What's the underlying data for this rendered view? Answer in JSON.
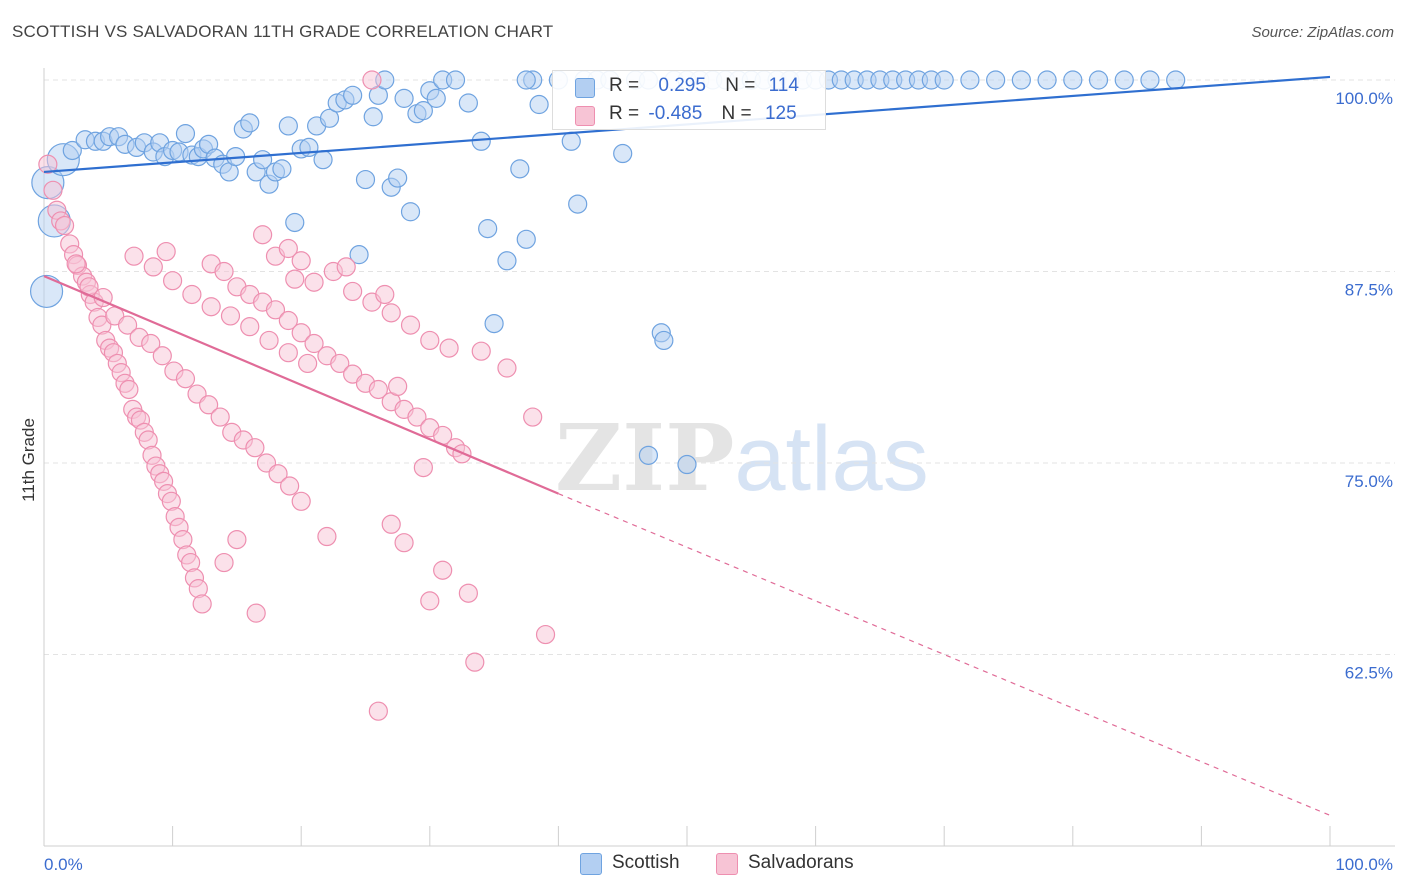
{
  "title": "SCOTTISH VS SALVADORAN 11TH GRADE CORRELATION CHART",
  "source": "Source: ZipAtlas.com",
  "watermark": "ZIPatlas",
  "colors": {
    "blue": "#6fa3e0",
    "blue_fill": "#b3cff2",
    "blue_line": "#2f6fd0",
    "pink": "#ee8fb0",
    "pink_fill": "#f7c4d5",
    "pink_line": "#e06b97",
    "tick_label": "#3b6ccf",
    "grid": "#e3e3e3"
  },
  "legend": {
    "rows": [
      {
        "r_label": "R =",
        "r_value": "0.295",
        "n_label": "N =",
        "n_value": "114"
      },
      {
        "r_label": "R =",
        "r_value": "-0.485",
        "n_label": "N =",
        "n_value": "125"
      }
    ]
  },
  "bottom_legend": [
    "Scottish",
    "Salvadorans"
  ],
  "chart_data": {
    "type": "scatter",
    "title": "SCOTTISH VS SALVADORAN 11TH GRADE CORRELATION CHART",
    "xlabel": "",
    "ylabel": "11th Grade",
    "xlim": [
      0,
      100
    ],
    "ylim": [
      50,
      100
    ],
    "x_tick_labels": [
      "0.0%",
      "100.0%"
    ],
    "y_tick_labels": [
      "100.0%",
      "87.5%",
      "75.0%",
      "62.5%"
    ],
    "y_ticks": [
      100,
      87.5,
      75,
      62.5
    ],
    "grid": true,
    "series": [
      {
        "name": "Scottish",
        "r": 0.295,
        "n": 114,
        "trend": {
          "x0": 0,
          "y0": 94.0,
          "x1": 100,
          "y1": 100.2
        },
        "points": [
          [
            0.3,
            93.3
          ],
          [
            0.8,
            90.8
          ],
          [
            1.5,
            94.8
          ],
          [
            0.2,
            86.2
          ],
          [
            2.2,
            95.4
          ],
          [
            3.2,
            96.1
          ],
          [
            4.0,
            96.0
          ],
          [
            4.6,
            96.0
          ],
          [
            5.1,
            96.3
          ],
          [
            5.8,
            96.3
          ],
          [
            6.3,
            95.8
          ],
          [
            7.2,
            95.6
          ],
          [
            7.8,
            95.9
          ],
          [
            8.5,
            95.3
          ],
          [
            9.0,
            95.9
          ],
          [
            9.4,
            95.0
          ],
          [
            10.0,
            95.4
          ],
          [
            10.5,
            95.3
          ],
          [
            11.0,
            96.5
          ],
          [
            11.5,
            95.1
          ],
          [
            12.0,
            95.0
          ],
          [
            12.4,
            95.5
          ],
          [
            12.8,
            95.8
          ],
          [
            13.3,
            94.9
          ],
          [
            13.9,
            94.5
          ],
          [
            14.4,
            94.0
          ],
          [
            14.9,
            95.0
          ],
          [
            15.5,
            96.8
          ],
          [
            16.0,
            97.2
          ],
          [
            16.5,
            94.0
          ],
          [
            17.0,
            94.8
          ],
          [
            17.5,
            93.2
          ],
          [
            18.0,
            94.0
          ],
          [
            18.5,
            94.2
          ],
          [
            19.0,
            97.0
          ],
          [
            19.5,
            90.7
          ],
          [
            20.0,
            95.5
          ],
          [
            20.6,
            95.6
          ],
          [
            21.2,
            97.0
          ],
          [
            21.7,
            94.8
          ],
          [
            22.2,
            97.5
          ],
          [
            22.8,
            98.5
          ],
          [
            23.4,
            98.7
          ],
          [
            24.0,
            99.0
          ],
          [
            24.5,
            88.6
          ],
          [
            25.0,
            93.5
          ],
          [
            25.6,
            97.6
          ],
          [
            26.0,
            99.0
          ],
          [
            26.5,
            100.0
          ],
          [
            27.0,
            93.0
          ],
          [
            27.5,
            93.6
          ],
          [
            28.0,
            98.8
          ],
          [
            28.5,
            91.4
          ],
          [
            29.0,
            97.8
          ],
          [
            29.5,
            98.0
          ],
          [
            30.0,
            99.3
          ],
          [
            30.5,
            98.8
          ],
          [
            31.0,
            100.0
          ],
          [
            32.0,
            100.0
          ],
          [
            33.0,
            98.5
          ],
          [
            34.0,
            96.0
          ],
          [
            34.5,
            90.3
          ],
          [
            35.0,
            84.1
          ],
          [
            36.0,
            88.2
          ],
          [
            37.0,
            94.2
          ],
          [
            37.5,
            89.6
          ],
          [
            38.0,
            100.0
          ],
          [
            38.5,
            98.4
          ],
          [
            40.0,
            100.0
          ],
          [
            41.0,
            96.0
          ],
          [
            41.5,
            91.9
          ],
          [
            42.0,
            100.0
          ],
          [
            43.0,
            100.0
          ],
          [
            44.0,
            100.0
          ],
          [
            45.0,
            95.2
          ],
          [
            46.0,
            100.0
          ],
          [
            47.0,
            100.0
          ],
          [
            48.0,
            83.5
          ],
          [
            48.2,
            83.0
          ],
          [
            49.0,
            100.0
          ],
          [
            50.0,
            100.0
          ],
          [
            51.0,
            100.0
          ],
          [
            52.0,
            100.0
          ],
          [
            53.0,
            100.0
          ],
          [
            54.0,
            100.0
          ],
          [
            55.0,
            100.0
          ],
          [
            56.0,
            100.0
          ],
          [
            57.0,
            100.0
          ],
          [
            58.0,
            100.0
          ],
          [
            59.0,
            100.0
          ],
          [
            60.0,
            100.0
          ],
          [
            61.0,
            100.0
          ],
          [
            62.0,
            100.0
          ],
          [
            63.0,
            100.0
          ],
          [
            64.0,
            100.0
          ],
          [
            65.0,
            100.0
          ],
          [
            66.0,
            100.0
          ],
          [
            67.0,
            100.0
          ],
          [
            68.0,
            100.0
          ],
          [
            69.0,
            100.0
          ],
          [
            70.0,
            100.0
          ],
          [
            72.0,
            100.0
          ],
          [
            74.0,
            100.0
          ],
          [
            76.0,
            100.0
          ],
          [
            78.0,
            100.0
          ],
          [
            80.0,
            100.0
          ],
          [
            82.0,
            100.0
          ],
          [
            84.0,
            100.0
          ],
          [
            86.0,
            100.0
          ],
          [
            88.0,
            100.0
          ],
          [
            47.0,
            75.5
          ],
          [
            50.0,
            74.9
          ],
          [
            37.5,
            100.0
          ],
          [
            58.0,
            100.0
          ]
        ]
      },
      {
        "name": "Salvadorans",
        "r": -0.485,
        "n": 125,
        "trend": {
          "x0": 0,
          "y0": 87.2,
          "x1": 40,
          "y1": 73.0,
          "dash_x1": 100,
          "dash_y1": 52.0
        },
        "points": [
          [
            0.3,
            94.5
          ],
          [
            0.7,
            92.8
          ],
          [
            1.0,
            91.5
          ],
          [
            1.3,
            90.8
          ],
          [
            1.6,
            90.5
          ],
          [
            2.0,
            89.3
          ],
          [
            2.3,
            88.6
          ],
          [
            2.6,
            87.9
          ],
          [
            3.0,
            87.2
          ],
          [
            3.3,
            86.8
          ],
          [
            3.6,
            86.0
          ],
          [
            3.9,
            85.5
          ],
          [
            4.2,
            84.5
          ],
          [
            4.5,
            84.0
          ],
          [
            4.8,
            83.0
          ],
          [
            5.1,
            82.5
          ],
          [
            5.4,
            82.2
          ],
          [
            5.7,
            81.5
          ],
          [
            6.0,
            80.9
          ],
          [
            6.3,
            80.2
          ],
          [
            6.6,
            79.8
          ],
          [
            6.9,
            78.5
          ],
          [
            7.2,
            78.0
          ],
          [
            7.5,
            77.8
          ],
          [
            7.8,
            77.0
          ],
          [
            8.1,
            76.5
          ],
          [
            8.4,
            75.5
          ],
          [
            8.7,
            74.8
          ],
          [
            9.0,
            74.3
          ],
          [
            9.3,
            73.8
          ],
          [
            9.6,
            73.0
          ],
          [
            9.9,
            72.5
          ],
          [
            10.2,
            71.5
          ],
          [
            10.5,
            70.8
          ],
          [
            10.8,
            70.0
          ],
          [
            11.1,
            69.0
          ],
          [
            11.4,
            68.5
          ],
          [
            11.7,
            67.5
          ],
          [
            12.0,
            66.8
          ],
          [
            12.3,
            65.8
          ],
          [
            2.5,
            88.0
          ],
          [
            3.5,
            86.5
          ],
          [
            4.6,
            85.8
          ],
          [
            5.5,
            84.6
          ],
          [
            6.5,
            84.0
          ],
          [
            7.4,
            83.2
          ],
          [
            8.3,
            82.8
          ],
          [
            9.2,
            82.0
          ],
          [
            10.1,
            81.0
          ],
          [
            11.0,
            80.5
          ],
          [
            11.9,
            79.5
          ],
          [
            12.8,
            78.8
          ],
          [
            13.7,
            78.0
          ],
          [
            14.6,
            77.0
          ],
          [
            15.5,
            76.5
          ],
          [
            16.4,
            76.0
          ],
          [
            17.3,
            75.0
          ],
          [
            18.2,
            74.3
          ],
          [
            19.1,
            73.5
          ],
          [
            20.0,
            72.5
          ],
          [
            13.0,
            88.0
          ],
          [
            14.0,
            87.5
          ],
          [
            15.0,
            86.5
          ],
          [
            16.0,
            86.0
          ],
          [
            17.0,
            85.5
          ],
          [
            18.0,
            85.0
          ],
          [
            19.0,
            84.3
          ],
          [
            20.0,
            83.5
          ],
          [
            21.0,
            82.8
          ],
          [
            22.0,
            82.0
          ],
          [
            23.0,
            81.5
          ],
          [
            24.0,
            80.8
          ],
          [
            25.0,
            80.2
          ],
          [
            26.0,
            79.8
          ],
          [
            27.0,
            79.0
          ],
          [
            28.0,
            78.5
          ],
          [
            29.0,
            78.0
          ],
          [
            30.0,
            77.3
          ],
          [
            31.0,
            76.8
          ],
          [
            32.0,
            76.0
          ],
          [
            18.0,
            88.5
          ],
          [
            19.5,
            87.0
          ],
          [
            21.0,
            86.8
          ],
          [
            22.5,
            87.5
          ],
          [
            24.0,
            86.2
          ],
          [
            25.5,
            85.5
          ],
          [
            27.0,
            84.8
          ],
          [
            28.5,
            84.0
          ],
          [
            30.0,
            83.0
          ],
          [
            31.5,
            82.5
          ],
          [
            7.0,
            88.5
          ],
          [
            8.5,
            87.8
          ],
          [
            10.0,
            86.9
          ],
          [
            11.5,
            86.0
          ],
          [
            13.0,
            85.2
          ],
          [
            14.5,
            84.6
          ],
          [
            16.0,
            83.9
          ],
          [
            17.5,
            83.0
          ],
          [
            19.0,
            82.2
          ],
          [
            20.5,
            81.5
          ],
          [
            25.5,
            100.0
          ],
          [
            26.0,
            58.8
          ],
          [
            27.0,
            71.0
          ],
          [
            28.0,
            69.8
          ],
          [
            30.0,
            66.0
          ],
          [
            31.0,
            68.0
          ],
          [
            33.0,
            66.5
          ],
          [
            34.0,
            82.3
          ],
          [
            36.0,
            81.2
          ],
          [
            38.0,
            78.0
          ],
          [
            39.0,
            63.8
          ],
          [
            15.0,
            70.0
          ],
          [
            16.5,
            65.2
          ],
          [
            22.0,
            70.2
          ],
          [
            14.0,
            68.5
          ],
          [
            17.0,
            89.9
          ],
          [
            19.0,
            89.0
          ],
          [
            20.0,
            88.2
          ],
          [
            9.5,
            88.8
          ],
          [
            23.5,
            87.8
          ],
          [
            26.5,
            86.0
          ],
          [
            27.5,
            80.0
          ],
          [
            29.5,
            74.7
          ],
          [
            32.5,
            75.6
          ],
          [
            33.5,
            62.0
          ]
        ]
      }
    ]
  }
}
